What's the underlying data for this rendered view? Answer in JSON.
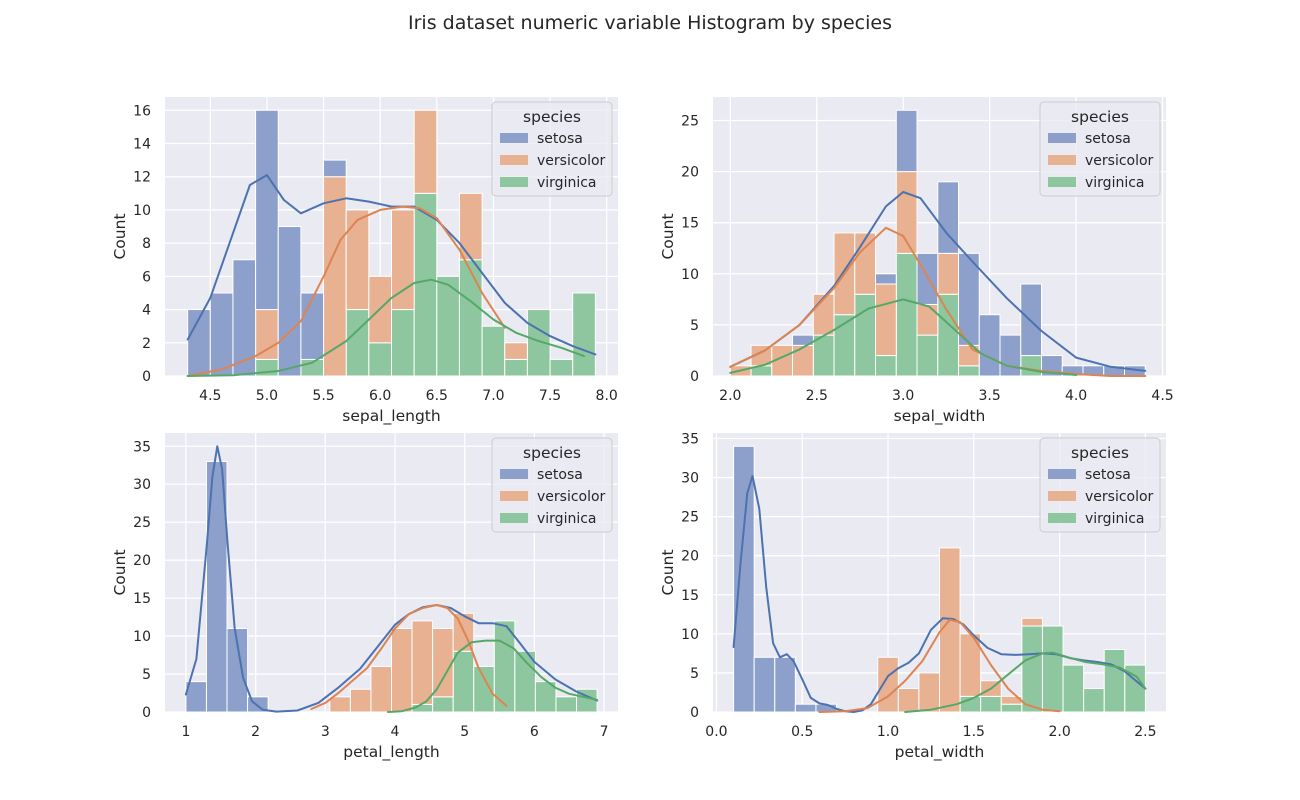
{
  "figure": {
    "title": "Iris dataset numeric variable Histogram by species"
  },
  "colors": {
    "setosa": "#4c72b0",
    "versicolor": "#dd8452",
    "virginica": "#55a868",
    "axes_bg": "#eaeaf2",
    "grid": "#ffffff"
  },
  "chart_data": [
    {
      "type": "bar",
      "stacked": true,
      "xlabel": "sepal_length",
      "ylabel": "Count",
      "xlim": [
        4.1,
        8.1
      ],
      "ylim": [
        0,
        16.8
      ],
      "xticks": [
        "4.5",
        "5.0",
        "5.5",
        "6.0",
        "6.5",
        "7.0",
        "7.5",
        "8.0"
      ],
      "yticks": [
        "0",
        "2",
        "4",
        "6",
        "8",
        "10",
        "12",
        "14",
        "16"
      ],
      "bin_edges": [
        4.3,
        4.5,
        4.7,
        4.9,
        5.1,
        5.3,
        5.5,
        5.7,
        5.9,
        6.1,
        6.3,
        6.5,
        6.7,
        6.9,
        7.1,
        7.3,
        7.5,
        7.7,
        7.9
      ],
      "legend": {
        "title": "species",
        "location": "upper right",
        "entries": [
          "setosa",
          "versicolor",
          "virginica"
        ]
      },
      "series": [
        {
          "name": "virginica",
          "values": [
            0,
            0,
            0,
            1,
            0,
            1,
            0,
            4,
            2,
            4,
            11,
            6,
            7,
            3,
            1,
            4,
            1,
            5
          ]
        },
        {
          "name": "versicolor",
          "values": [
            0,
            0,
            0,
            3,
            0,
            0,
            12,
            6,
            4,
            6,
            5,
            0,
            4,
            0,
            1,
            0,
            0,
            0
          ]
        },
        {
          "name": "setosa",
          "values": [
            4,
            5,
            7,
            12,
            9,
            4,
            1,
            0,
            0,
            0,
            0,
            0,
            0,
            0,
            0,
            0,
            0,
            0
          ]
        }
      ],
      "kde": [
        {
          "name": "setosa",
          "x": [
            4.3,
            4.5,
            4.7,
            4.85,
            5.0,
            5.15,
            5.3,
            5.5,
            5.7,
            5.9,
            6.1,
            6.3,
            6.5,
            6.7,
            6.9,
            7.1,
            7.3,
            7.5,
            7.7,
            7.9
          ],
          "y": [
            2.2,
            4.7,
            8.6,
            11.5,
            12.1,
            10.6,
            9.8,
            10.4,
            10.7,
            10.5,
            10.2,
            10.2,
            9.4,
            8.0,
            6.2,
            4.4,
            3.2,
            2.4,
            1.8,
            1.3
          ]
        },
        {
          "name": "versicolor",
          "x": [
            4.3,
            4.6,
            4.9,
            5.1,
            5.3,
            5.5,
            5.65,
            5.8,
            6.0,
            6.2,
            6.35,
            6.5,
            6.7,
            6.9,
            7.1
          ],
          "y": [
            0,
            0.4,
            1.2,
            2.0,
            3.3,
            6.0,
            8.2,
            9.4,
            10.0,
            10.2,
            10.1,
            9.5,
            7.6,
            5.0,
            2.9
          ]
        },
        {
          "name": "virginica",
          "x": [
            4.3,
            4.7,
            5.1,
            5.4,
            5.7,
            5.9,
            6.1,
            6.3,
            6.45,
            6.6,
            6.8,
            7.0,
            7.2,
            7.4,
            7.6,
            7.8
          ],
          "y": [
            0,
            0.05,
            0.3,
            0.8,
            2.1,
            3.4,
            4.7,
            5.6,
            5.8,
            5.5,
            4.5,
            3.4,
            2.6,
            2.1,
            1.7,
            1.2
          ]
        }
      ]
    },
    {
      "type": "bar",
      "stacked": true,
      "xlabel": "sepal_width",
      "ylabel": "Count",
      "xlim": [
        1.9,
        4.52
      ],
      "ylim": [
        0,
        27.3
      ],
      "xticks": [
        "2.0",
        "2.5",
        "3.0",
        "3.5",
        "4.0",
        "4.5"
      ],
      "yticks": [
        "0",
        "5",
        "10",
        "15",
        "20",
        "25"
      ],
      "bin_edges": [
        2.0,
        2.12,
        2.24,
        2.36,
        2.48,
        2.6,
        2.72,
        2.84,
        2.96,
        3.08,
        3.2,
        3.32,
        3.44,
        3.56,
        3.68,
        3.8,
        3.92,
        4.04,
        4.16,
        4.28,
        4.4
      ],
      "legend": {
        "title": "species",
        "location": "upper right",
        "entries": [
          "setosa",
          "versicolor",
          "virginica"
        ]
      },
      "series": [
        {
          "name": "virginica",
          "values": [
            0,
            1,
            0,
            0,
            4,
            6,
            8,
            2,
            12,
            4,
            8,
            1,
            0,
            0,
            2,
            0,
            0,
            0,
            0,
            0
          ]
        },
        {
          "name": "versicolor",
          "values": [
            1,
            2,
            3,
            3,
            4,
            8,
            6,
            7,
            8,
            3,
            4,
            2,
            0,
            0,
            0,
            0,
            0,
            0,
            0,
            0
          ]
        },
        {
          "name": "setosa",
          "values": [
            0,
            0,
            0,
            1,
            0,
            0,
            0,
            1,
            6,
            5,
            7,
            9,
            6,
            4,
            7,
            2,
            1,
            1,
            1,
            1
          ]
        }
      ],
      "kde": [
        {
          "name": "setosa",
          "x": [
            2.0,
            2.2,
            2.4,
            2.6,
            2.75,
            2.9,
            3.0,
            3.1,
            3.25,
            3.4,
            3.6,
            3.8,
            4.0,
            4.2,
            4.4
          ],
          "y": [
            0.9,
            2.5,
            5.0,
            8.8,
            12.6,
            16.6,
            18.0,
            17.4,
            14.0,
            11.2,
            7.6,
            4.4,
            1.8,
            0.9,
            0.5
          ]
        },
        {
          "name": "versicolor",
          "x": [
            2.0,
            2.2,
            2.4,
            2.6,
            2.75,
            2.9,
            3.0,
            3.1,
            3.25,
            3.4,
            3.6,
            3.8,
            4.0,
            4.2,
            4.4
          ],
          "y": [
            0.9,
            2.5,
            5.0,
            8.6,
            12.1,
            14.5,
            13.7,
            10.9,
            6.5,
            2.6,
            1.0,
            0.5,
            0.2,
            0,
            0
          ]
        },
        {
          "name": "virginica",
          "x": [
            2.0,
            2.2,
            2.4,
            2.6,
            2.8,
            3.0,
            3.15,
            3.3,
            3.45,
            3.6,
            3.8,
            4.0
          ],
          "y": [
            0.3,
            1.1,
            2.6,
            4.5,
            6.6,
            7.5,
            6.8,
            4.5,
            2.2,
            1.0,
            0.4,
            0.1
          ]
        }
      ]
    },
    {
      "type": "bar",
      "stacked": true,
      "xlabel": "petal_length",
      "ylabel": "Count",
      "xlim": [
        0.7,
        7.2
      ],
      "ylim": [
        0,
        36.75
      ],
      "xticks": [
        "1",
        "2",
        "3",
        "4",
        "5",
        "6",
        "7"
      ],
      "yticks": [
        "0",
        "5",
        "10",
        "15",
        "20",
        "25",
        "30",
        "35"
      ],
      "bin_edges": [
        1.0,
        1.295,
        1.59,
        1.885,
        2.18,
        2.475,
        2.77,
        3.065,
        3.36,
        3.655,
        3.95,
        4.245,
        4.54,
        4.835,
        5.13,
        5.425,
        5.72,
        6.015,
        6.31,
        6.605,
        6.9
      ],
      "legend": {
        "title": "species",
        "location": "upper right",
        "entries": [
          "setosa",
          "versicolor",
          "virginica"
        ]
      },
      "series": [
        {
          "name": "virginica",
          "values": [
            0,
            0,
            0,
            0,
            0,
            0,
            0,
            0,
            0,
            0,
            0,
            1,
            2,
            8,
            6,
            12,
            8,
            4,
            2,
            3
          ]
        },
        {
          "name": "versicolor",
          "values": [
            0,
            0,
            0,
            0,
            0,
            0,
            0,
            2,
            3,
            6,
            11,
            11,
            9,
            5,
            0,
            0,
            0,
            0,
            0,
            0
          ]
        },
        {
          "name": "setosa",
          "values": [
            4,
            33,
            11,
            2,
            0,
            0,
            0,
            0,
            0,
            0,
            0,
            0,
            0,
            0,
            0,
            0,
            0,
            0,
            0,
            0
          ]
        }
      ],
      "kde": [
        {
          "name": "setosa",
          "x": [
            1.0,
            1.15,
            1.3,
            1.38,
            1.45,
            1.52,
            1.6,
            1.7,
            1.82,
            1.95,
            2.1,
            2.3,
            2.6,
            2.9,
            3.2,
            3.5,
            3.75,
            4.0,
            4.2,
            4.4,
            4.6,
            4.8,
            5.0,
            5.2,
            5.4,
            5.6,
            5.8,
            6.0,
            6.3,
            6.6,
            6.9
          ],
          "y": [
            2.3,
            7.0,
            22.0,
            31.0,
            35.0,
            32.0,
            22.0,
            11.0,
            4.5,
            1.4,
            0.3,
            0.05,
            0.2,
            1.2,
            3.3,
            5.7,
            8.6,
            11.5,
            12.9,
            13.8,
            14.1,
            13.7,
            12.6,
            11.7,
            11.7,
            11.3,
            9.0,
            6.6,
            4.3,
            2.7,
            1.5
          ]
        },
        {
          "name": "versicolor",
          "x": [
            2.8,
            3.0,
            3.2,
            3.4,
            3.6,
            3.8,
            4.0,
            4.2,
            4.4,
            4.6,
            4.75,
            4.9,
            5.05,
            5.2,
            5.4,
            5.6
          ],
          "y": [
            0.4,
            1.2,
            2.6,
            4.2,
            5.8,
            8.3,
            11.0,
            12.9,
            13.7,
            14.1,
            13.7,
            12.3,
            9.4,
            5.8,
            2.4,
            0.8
          ]
        },
        {
          "name": "virginica",
          "x": [
            3.9,
            4.1,
            4.3,
            4.45,
            4.6,
            4.75,
            4.9,
            5.1,
            5.3,
            5.5,
            5.7,
            5.9,
            6.1,
            6.3,
            6.5,
            6.7,
            6.9
          ],
          "y": [
            0,
            0.1,
            0.6,
            1.4,
            3.0,
            5.4,
            7.8,
            9.2,
            9.4,
            9.4,
            8.4,
            6.4,
            4.6,
            3.2,
            2.4,
            2.0,
            1.6
          ]
        }
      ]
    },
    {
      "type": "bar",
      "stacked": true,
      "xlabel": "petal_width",
      "ylabel": "Count",
      "xlim": [
        -0.02,
        2.62
      ],
      "ylim": [
        0,
        35.7
      ],
      "xticks": [
        "0.0",
        "0.5",
        "1.0",
        "1.5",
        "2.0",
        "2.5"
      ],
      "yticks": [
        "0",
        "5",
        "10",
        "15",
        "20",
        "25",
        "30",
        "35"
      ],
      "bin_edges": [
        0.1,
        0.22,
        0.34,
        0.46,
        0.58,
        0.7,
        0.82,
        0.94,
        1.06,
        1.18,
        1.3,
        1.42,
        1.54,
        1.66,
        1.78,
        1.9,
        2.02,
        2.14,
        2.26,
        2.38,
        2.5
      ],
      "legend": {
        "title": "species",
        "location": "upper right",
        "entries": [
          "setosa",
          "versicolor",
          "virginica"
        ]
      },
      "series": [
        {
          "name": "virginica",
          "values": [
            0,
            0,
            0,
            0,
            0,
            0,
            0,
            0,
            0,
            0,
            0,
            2,
            2,
            1,
            11,
            11,
            6,
            3,
            8,
            6
          ]
        },
        {
          "name": "versicolor",
          "values": [
            0,
            0,
            0,
            0,
            0,
            0,
            0,
            7,
            3,
            5,
            21,
            8,
            2,
            1,
            1,
            0,
            0,
            0,
            0,
            0
          ]
        },
        {
          "name": "setosa",
          "values": [
            34,
            7,
            7,
            1,
            1,
            0,
            0,
            0,
            0,
            0,
            0,
            0,
            0,
            0,
            0,
            0,
            0,
            0,
            0,
            0
          ]
        }
      ],
      "kde": [
        {
          "name": "setosa",
          "x": [
            0.1,
            0.14,
            0.18,
            0.21,
            0.25,
            0.29,
            0.33,
            0.37,
            0.41,
            0.45,
            0.5,
            0.55,
            0.6,
            0.65,
            0.7,
            0.75,
            0.8,
            0.85,
            0.9,
            0.95,
            1.0,
            1.06,
            1.12,
            1.18,
            1.25,
            1.32,
            1.38,
            1.44,
            1.5,
            1.58,
            1.66,
            1.74,
            1.82,
            1.9,
            1.98,
            2.06,
            2.14,
            2.22,
            2.3,
            2.38,
            2.45,
            2.5
          ],
          "y": [
            8.3,
            19.0,
            28.0,
            30.2,
            26.0,
            16.0,
            8.8,
            7.0,
            7.4,
            6.5,
            4.2,
            1.8,
            1.1,
            0.9,
            0.4,
            0.1,
            0.0,
            0.2,
            1.0,
            2.8,
            4.6,
            5.6,
            6.3,
            7.5,
            10.5,
            12.0,
            11.9,
            11.2,
            9.8,
            8.2,
            7.4,
            7.3,
            7.4,
            7.5,
            7.4,
            6.9,
            6.6,
            6.4,
            6.1,
            5.2,
            3.9,
            3.0
          ]
        },
        {
          "name": "versicolor",
          "x": [
            0.6,
            0.75,
            0.88,
            1.0,
            1.1,
            1.2,
            1.3,
            1.36,
            1.42,
            1.5,
            1.6,
            1.7,
            1.8,
            1.9,
            2.0
          ],
          "y": [
            0,
            0.1,
            0.5,
            2.0,
            4.0,
            6.5,
            10.2,
            11.8,
            11.5,
            9.5,
            6.0,
            3.0,
            1.0,
            0.3,
            0.1
          ]
        },
        {
          "name": "virginica",
          "x": [
            1.1,
            1.25,
            1.4,
            1.5,
            1.6,
            1.7,
            1.8,
            1.9,
            1.96,
            2.05,
            2.15,
            2.25,
            2.35,
            2.45,
            2.5
          ],
          "y": [
            0,
            0.3,
            1.0,
            1.8,
            3.0,
            4.8,
            6.6,
            7.5,
            7.6,
            7.0,
            6.4,
            6.1,
            5.7,
            4.5,
            3.0
          ]
        }
      ]
    }
  ]
}
